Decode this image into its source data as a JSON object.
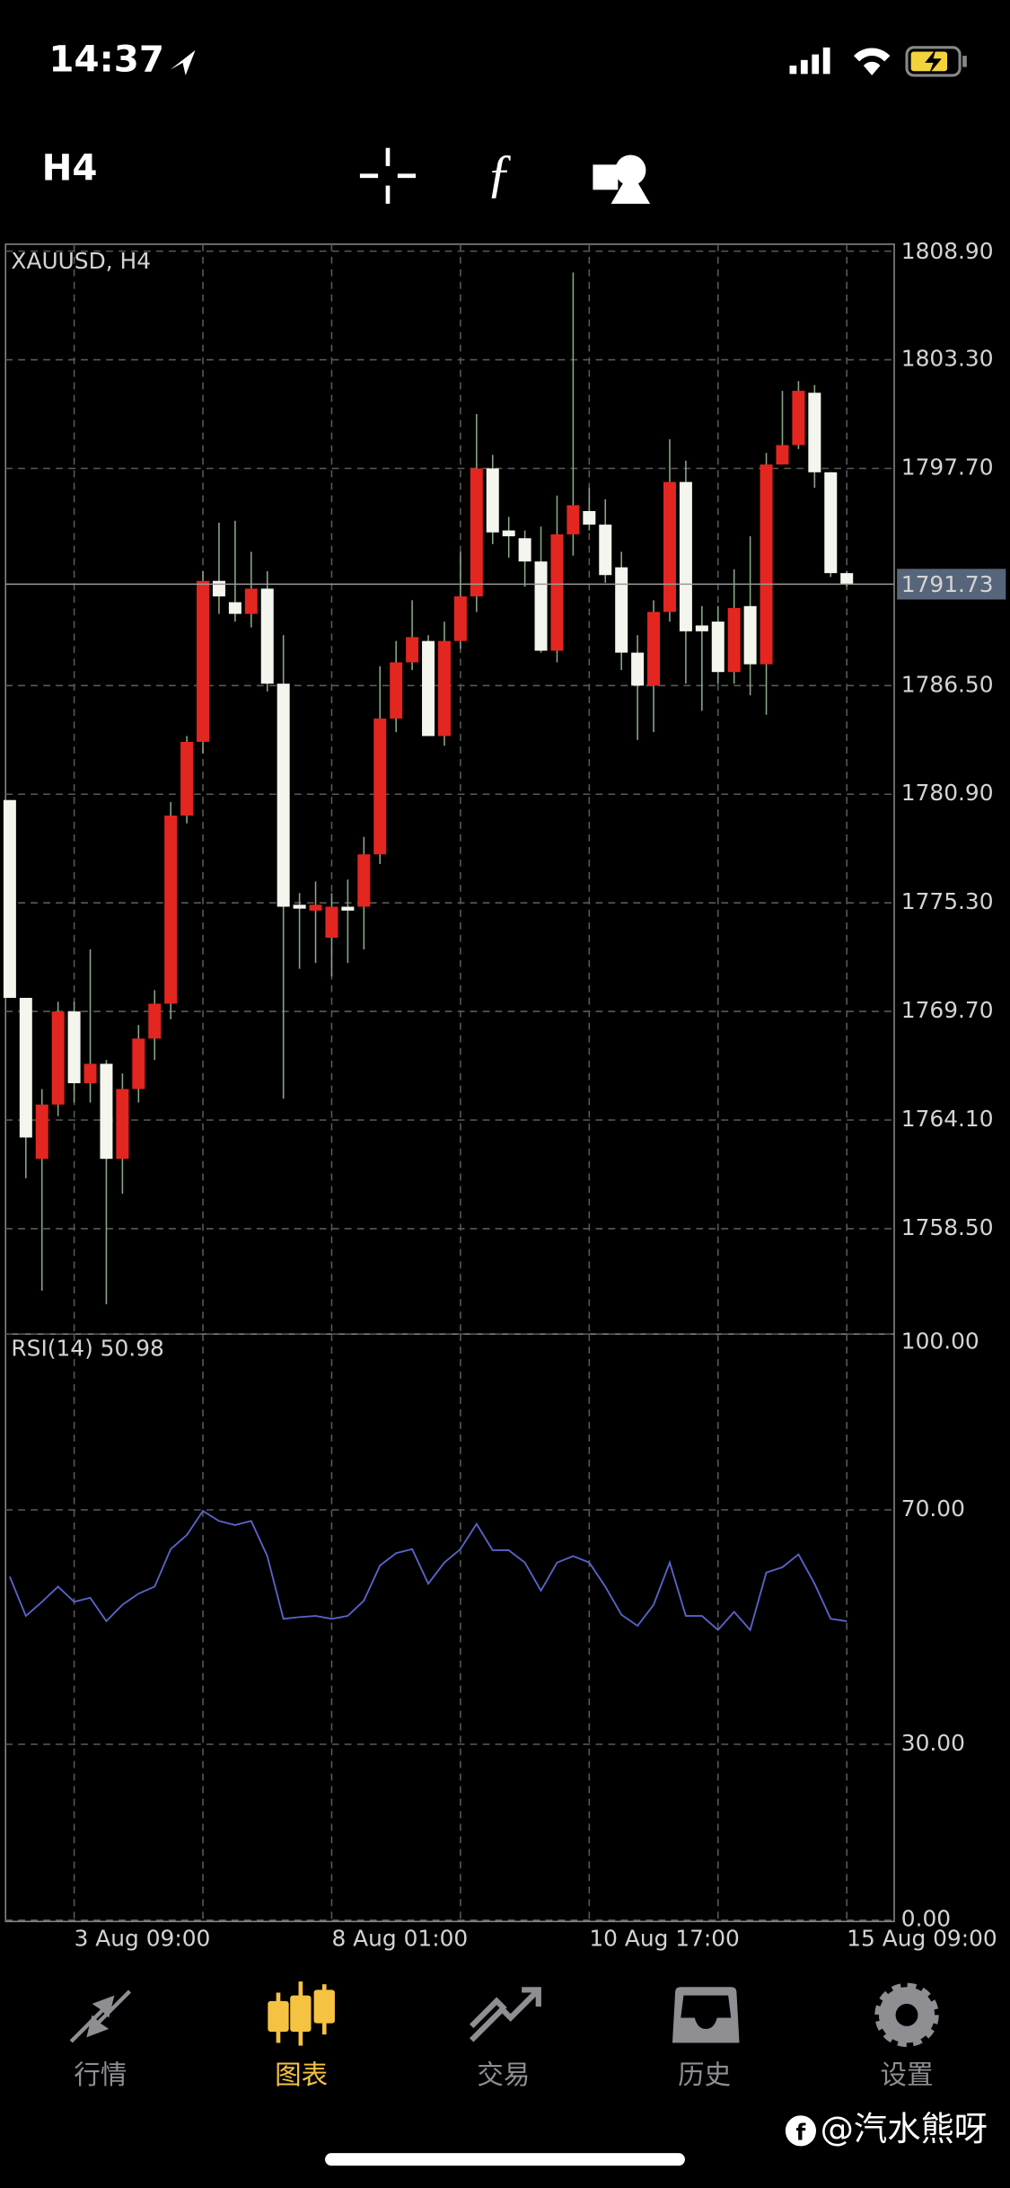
{
  "status_bar": {
    "time": "14:37"
  },
  "toolbar": {
    "timeframe": "H4"
  },
  "chart_data": [
    {
      "type": "candlestick",
      "title": "XAUUSD, H4",
      "categories": [
        null,
        null,
        null,
        null,
        "3 Aug 09:00",
        null,
        null,
        null,
        null,
        null,
        null,
        null,
        null,
        null,
        null,
        null,
        null,
        null,
        null,
        null,
        "8 Aug 01:00",
        null,
        null,
        null,
        null,
        null,
        null,
        null,
        null,
        null,
        null,
        null,
        null,
        null,
        null,
        null,
        "10 Aug 17:00",
        null,
        null,
        null,
        null,
        null,
        null,
        null,
        null,
        null,
        null,
        null,
        null,
        null,
        null,
        null,
        "15 Aug 09:00"
      ],
      "open": [
        1780.6,
        1770.4,
        1762.1,
        1764.9,
        1769.7,
        1766.0,
        1767.0,
        1762.1,
        1765.7,
        1768.3,
        1770.1,
        1779.8,
        1783.6,
        1791.9,
        1790.8,
        1790.2,
        1791.5,
        1786.6,
        1775.2,
        1774.9,
        1773.5,
        1775.1,
        1775.1,
        1777.8,
        1784.8,
        1787.7,
        1788.8,
        1783.9,
        1788.8,
        1791.1,
        1797.7,
        1794.5,
        1794.1,
        1792.9,
        1788.3,
        1794.3,
        1795.5,
        1794.8,
        1792.6,
        1788.2,
        1786.5,
        1790.3,
        1797.0,
        1789.6,
        1789.8,
        1787.2,
        1790.6,
        1787.6,
        1797.9,
        1798.9,
        1801.6,
        1797.5,
        1792.3
      ],
      "high": [
        1780.6,
        1770.4,
        1765.7,
        1770.2,
        1770.2,
        1772.9,
        1767.2,
        1766.5,
        1769.0,
        1770.8,
        1780.5,
        1783.9,
        1792.4,
        1794.9,
        1795.0,
        1793.4,
        1792.4,
        1789.1,
        1775.8,
        1776.4,
        1775.8,
        1776.5,
        1778.7,
        1787.5,
        1788.8,
        1790.9,
        1789.1,
        1789.8,
        1793.4,
        1800.5,
        1798.4,
        1795.2,
        1794.5,
        1794.7,
        1796.3,
        1807.8,
        1796.7,
        1796.1,
        1793.4,
        1789.1,
        1790.9,
        1799.2,
        1798.1,
        1790.6,
        1790.6,
        1792.5,
        1794.2,
        1798.5,
        1801.7,
        1802.2,
        1802.0,
        1797.5,
        1792.4
      ],
      "low": [
        1770.4,
        1761.1,
        1755.3,
        1764.3,
        1765.0,
        1765.0,
        1754.6,
        1760.3,
        1765.0,
        1767.2,
        1769.3,
        1779.4,
        1783.0,
        1790.2,
        1789.8,
        1789.5,
        1786.2,
        1765.2,
        1771.9,
        1772.2,
        1771.5,
        1772.2,
        1772.9,
        1777.3,
        1784.1,
        1787.3,
        1783.9,
        1783.4,
        1788.4,
        1790.3,
        1793.8,
        1793.1,
        1791.6,
        1788.2,
        1787.7,
        1793.2,
        1794.5,
        1791.8,
        1787.3,
        1783.7,
        1784.1,
        1789.8,
        1786.6,
        1785.2,
        1786.6,
        1786.6,
        1786.0,
        1785.0,
        1797.9,
        1798.7,
        1796.7,
        1792.1,
        1791.6
      ],
      "close": [
        1770.4,
        1763.2,
        1764.9,
        1769.7,
        1766.0,
        1767.0,
        1762.1,
        1765.7,
        1768.3,
        1770.1,
        1779.8,
        1783.6,
        1791.9,
        1791.1,
        1790.2,
        1791.5,
        1786.6,
        1775.1,
        1775.0,
        1775.2,
        1775.1,
        1774.9,
        1777.8,
        1784.8,
        1787.7,
        1789.0,
        1783.9,
        1788.8,
        1791.1,
        1797.7,
        1794.4,
        1794.2,
        1792.9,
        1788.3,
        1794.3,
        1795.8,
        1794.8,
        1792.2,
        1788.2,
        1786.5,
        1790.3,
        1797.0,
        1789.3,
        1789.3,
        1787.2,
        1790.5,
        1787.6,
        1797.9,
        1798.9,
        1801.7,
        1797.5,
        1792.3,
        1791.73
      ],
      "up_color": "#e3261f",
      "down_color": "#f4f6ee",
      "wick_color": "#8aa88a",
      "ylim": [
        1753.14,
        1809.26
      ],
      "yticks": [
        {
          "value": 1808.9,
          "label": "1808.90"
        },
        {
          "value": 1803.3,
          "label": "1803.30"
        },
        {
          "value": 1797.7,
          "label": "1797.70"
        },
        {
          "value": 1786.5,
          "label": "1786.50"
        },
        {
          "value": 1780.9,
          "label": "1780.90"
        },
        {
          "value": 1775.3,
          "label": "1775.30"
        },
        {
          "value": 1769.7,
          "label": "1769.70"
        },
        {
          "value": 1764.1,
          "label": "1764.10"
        },
        {
          "value": 1758.5,
          "label": "1758.50"
        }
      ],
      "current_price": 1791.73,
      "grid": true
    },
    {
      "type": "line",
      "title": "RSI(14) 50.98",
      "color": "#5a63c9",
      "values": [
        58.6,
        51.9,
        54.3,
        56.9,
        54.3,
        55.0,
        51.0,
        53.8,
        55.7,
        56.9,
        63.3,
        65.7,
        69.8,
        68.1,
        67.4,
        68.1,
        62.1,
        51.4,
        51.7,
        51.9,
        51.4,
        51.9,
        54.5,
        60.5,
        62.6,
        63.3,
        57.4,
        61.0,
        63.3,
        67.6,
        63.1,
        63.1,
        61.0,
        56.2,
        61.0,
        62.1,
        61.0,
        56.9,
        52.1,
        50.2,
        53.8,
        61.0,
        51.9,
        51.9,
        49.5,
        52.6,
        49.5,
        59.3,
        60.2,
        62.4,
        57.4,
        51.4,
        50.98
      ],
      "ylim": [
        0,
        100
      ],
      "yticks": [
        {
          "value": 0,
          "label": "0.00"
        },
        {
          "value": 30,
          "label": "30.00"
        },
        {
          "value": 70,
          "label": "70.00"
        },
        {
          "value": 100,
          "label": "100.00"
        }
      ],
      "grid": true
    }
  ],
  "tab_bar": {
    "tabs": [
      "行情",
      "图表",
      "交易",
      "历史",
      "设置"
    ],
    "active": 1
  },
  "watermark": "@汽水熊呀"
}
